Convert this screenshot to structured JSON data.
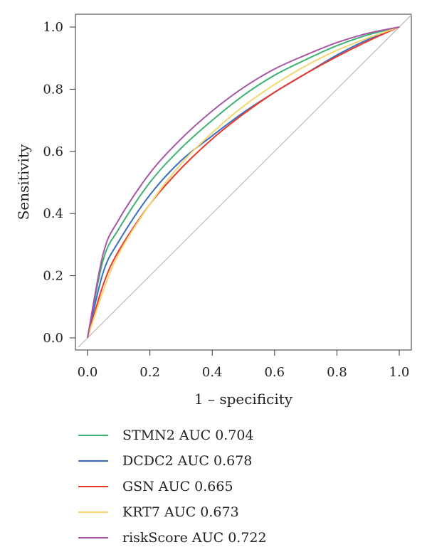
{
  "chart_data": {
    "type": "line",
    "title": "",
    "xlabel": "1 – specificity",
    "ylabel": "Sensitivity",
    "xlim": [
      0,
      1
    ],
    "ylim": [
      0,
      1
    ],
    "x_ticks": [
      "0.0",
      "0.2",
      "0.4",
      "0.6",
      "0.8",
      "1.0"
    ],
    "y_ticks": [
      "0.0",
      "0.2",
      "0.4",
      "0.6",
      "0.8",
      "1.0"
    ],
    "grid": false,
    "legend_position": "bottom",
    "diagonal_reference": true,
    "series": [
      {
        "name": "STMN2 AUC 0.704",
        "color": "#3cb371",
        "x": [
          0,
          0.05,
          0.1,
          0.2,
          0.3,
          0.4,
          0.5,
          0.6,
          0.7,
          0.8,
          0.9,
          1.0
        ],
        "y": [
          0,
          0.25,
          0.35,
          0.5,
          0.61,
          0.7,
          0.78,
          0.845,
          0.895,
          0.94,
          0.975,
          1.0
        ]
      },
      {
        "name": "DCDC2 AUC 0.678",
        "color": "#3a6fc4",
        "x": [
          0,
          0.05,
          0.1,
          0.2,
          0.3,
          0.4,
          0.5,
          0.6,
          0.7,
          0.8,
          0.9,
          1.0
        ],
        "y": [
          0,
          0.21,
          0.31,
          0.46,
          0.57,
          0.65,
          0.725,
          0.79,
          0.85,
          0.91,
          0.96,
          1.0
        ]
      },
      {
        "name": "GSN AUC 0.665",
        "color": "#e8392a",
        "x": [
          0,
          0.05,
          0.1,
          0.2,
          0.3,
          0.4,
          0.5,
          0.6,
          0.7,
          0.8,
          0.9,
          1.0
        ],
        "y": [
          0,
          0.17,
          0.28,
          0.43,
          0.545,
          0.64,
          0.72,
          0.79,
          0.85,
          0.905,
          0.955,
          1.0
        ]
      },
      {
        "name": "KRT7 AUC 0.673",
        "color": "#f2d670",
        "x": [
          0,
          0.05,
          0.1,
          0.2,
          0.3,
          0.4,
          0.5,
          0.6,
          0.7,
          0.8,
          0.9,
          1.0
        ],
        "y": [
          0,
          0.15,
          0.27,
          0.43,
          0.56,
          0.66,
          0.745,
          0.815,
          0.875,
          0.925,
          0.965,
          1.0
        ]
      },
      {
        "name": "riskScore AUC 0.722",
        "color": "#a855a8",
        "x": [
          0,
          0.05,
          0.1,
          0.2,
          0.3,
          0.4,
          0.5,
          0.6,
          0.7,
          0.8,
          0.9,
          1.0
        ],
        "y": [
          0,
          0.27,
          0.38,
          0.53,
          0.64,
          0.73,
          0.805,
          0.865,
          0.91,
          0.95,
          0.98,
          1.0
        ]
      }
    ]
  }
}
